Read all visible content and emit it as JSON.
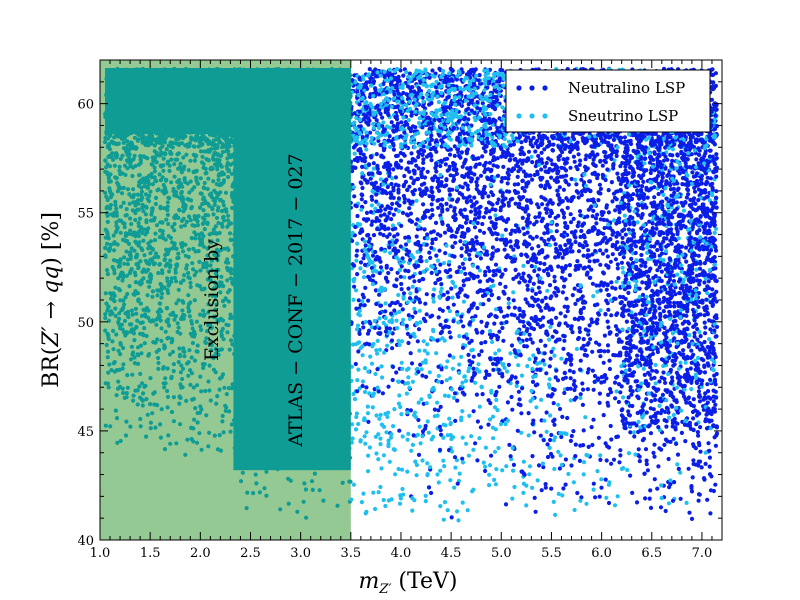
{
  "chart_data": {
    "type": "scatter",
    "title": "",
    "xlabel": "m_{Z'} (TeV)",
    "ylabel": "BR(Z' → qq) [%]",
    "xlim": [
      1.0,
      7.2
    ],
    "ylim": [
      40,
      62
    ],
    "xticks": [
      "1.0",
      "1.5",
      "2.0",
      "2.5",
      "3.0",
      "3.5",
      "4.0",
      "4.5",
      "5.0",
      "5.5",
      "6.0",
      "6.5",
      "7.0"
    ],
    "yticks": [
      "40",
      "45",
      "50",
      "55",
      "60"
    ],
    "legend_position": "top-right",
    "series": [
      {
        "name": "Neutralino LSP",
        "color": "#0a1ee6",
        "x_range": [
          1.05,
          7.15
        ],
        "y_range": [
          41.0,
          61.5
        ]
      },
      {
        "name": "Sneutrino LSP",
        "color": "#1fbff0",
        "x_range": [
          1.05,
          7.15
        ],
        "y_range": [
          40.5,
          61.5
        ]
      }
    ],
    "exclusion_region": {
      "x_range": [
        1.0,
        3.5
      ],
      "color": "#95c994",
      "overlap_color": "#0e9c95"
    },
    "annotations": [
      "Exclusion by",
      "ATLAS − CONF − 2017 − 027"
    ]
  }
}
